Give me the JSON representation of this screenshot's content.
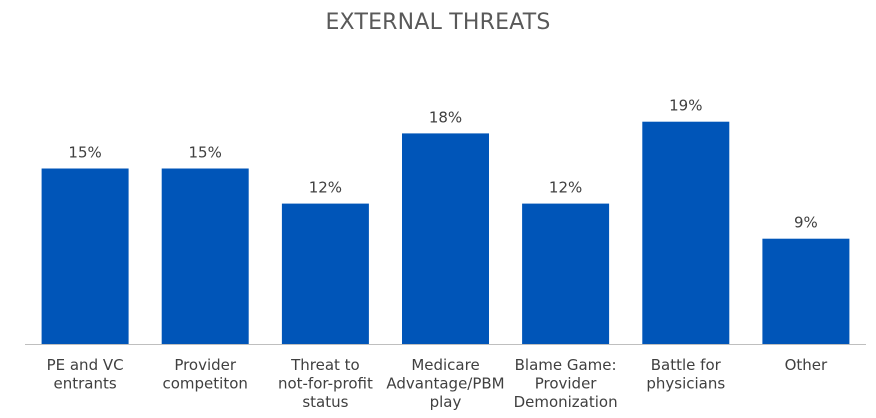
{
  "chart_data": {
    "type": "bar",
    "title": "EXTERNAL THREATS",
    "categories": [
      [
        "PE and VC",
        "entrants"
      ],
      [
        "Provider",
        "competiton"
      ],
      [
        "Threat to",
        "not-for-profit",
        "status"
      ],
      [
        "Medicare",
        "Advantage/PBM",
        "play"
      ],
      [
        "Blame Game:",
        "Provider",
        "Demonization"
      ],
      [
        "Battle for",
        "physicians"
      ],
      [
        "Other"
      ]
    ],
    "values": [
      15,
      15,
      12,
      18,
      12,
      19,
      9
    ],
    "data_labels": [
      "15%",
      "15%",
      "12%",
      "18%",
      "12%",
      "19%",
      "9%"
    ],
    "unit": "%",
    "ylim": [
      0,
      19
    ],
    "grid": false,
    "legend": "none",
    "colors": {
      "bar": "#0055b8",
      "axis": "#bfbfbf",
      "label": "#404040",
      "title": "#595959"
    }
  }
}
